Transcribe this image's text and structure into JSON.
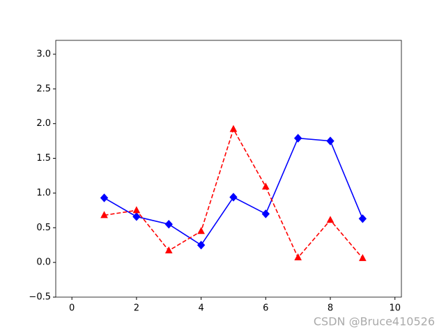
{
  "chart_data": {
    "type": "line",
    "x": [
      1,
      2,
      3,
      4,
      5,
      6,
      7,
      8,
      9
    ],
    "series": [
      {
        "color": "#0000ff",
        "marker": "diamond",
        "linestyle": "solid",
        "values": [
          0.93,
          0.66,
          0.55,
          0.25,
          0.94,
          0.7,
          1.79,
          1.75,
          0.63
        ]
      },
      {
        "color": "#ff0000",
        "marker": "triangle",
        "linestyle": "dashed",
        "values": [
          0.68,
          0.75,
          0.17,
          0.45,
          1.92,
          1.09,
          0.07,
          0.61,
          0.06
        ]
      }
    ],
    "xlim": [
      -0.5,
      10.2
    ],
    "ylim": [
      -0.5,
      3.2
    ],
    "xticks": [
      0,
      2,
      4,
      6,
      8,
      10
    ],
    "yticks": [
      {
        "value": -0.5,
        "label": "−0.5"
      },
      {
        "value": 0,
        "label": "0.0"
      },
      0.5,
      {
        "value": 1,
        "label": "1.0"
      },
      1.5,
      {
        "value": 2,
        "label": "2.0"
      },
      2.5,
      {
        "value": 3,
        "label": "3.0"
      }
    ],
    "grid": false
  },
  "watermark": "CSDN @Bruce410526"
}
